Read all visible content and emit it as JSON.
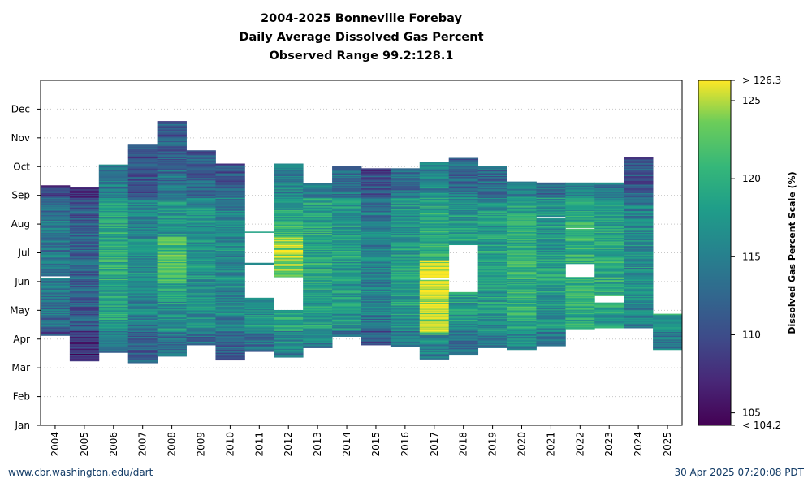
{
  "chart_data": {
    "type": "heatmap",
    "title": "2004-2025 Bonneville Forebay",
    "subtitle": "Daily Average Dissolved Gas Percent",
    "range_label": "Observed Range 99.2:128.1",
    "x_categories": [
      "2004",
      "2005",
      "2006",
      "2007",
      "2008",
      "2009",
      "2010",
      "2011",
      "2012",
      "2013",
      "2014",
      "2015",
      "2016",
      "2017",
      "2018",
      "2019",
      "2020",
      "2021",
      "2022",
      "2023",
      "2024",
      "2025"
    ],
    "y_ticks": [
      "Jan",
      "Feb",
      "Mar",
      "Apr",
      "May",
      "Jun",
      "Jul",
      "Aug",
      "Sep",
      "Oct",
      "Nov",
      "Dec"
    ],
    "grid": "horizontal dotted",
    "colorbar": {
      "label": "Dissolved Gas Percent Scale (%)",
      "min": 104.2,
      "max": 126.3,
      "ticks": [
        105,
        110,
        115,
        120,
        125
      ],
      "min_label": "< 104.2",
      "max_label": "> 126.3",
      "colormap": "viridis"
    },
    "seasons": [
      {
        "year": "2004",
        "start_day": 95,
        "end_day": 254,
        "typical": 112,
        "gaps": [
          [
            156,
            158
          ]
        ]
      },
      {
        "year": "2005",
        "start_day": 68,
        "end_day": 252,
        "typical": 110
      },
      {
        "year": "2006",
        "start_day": 77,
        "end_day": 276,
        "typical": 117
      },
      {
        "year": "2007",
        "start_day": 66,
        "end_day": 297,
        "typical": 114
      },
      {
        "year": "2008",
        "start_day": 73,
        "end_day": 322,
        "typical": 116
      },
      {
        "year": "2009",
        "start_day": 85,
        "end_day": 291,
        "typical": 115
      },
      {
        "year": "2010",
        "start_day": 69,
        "end_day": 277,
        "typical": 114
      },
      {
        "year": "2011",
        "start_day": 78,
        "end_day": 205,
        "typical": 116,
        "gaps": [
          [
            135,
            170
          ],
          [
            172,
            204
          ]
        ]
      },
      {
        "year": "2012",
        "start_day": 72,
        "end_day": 277,
        "typical": 118,
        "gaps": [
          [
            122,
            157
          ]
        ]
      },
      {
        "year": "2013",
        "start_day": 82,
        "end_day": 256,
        "typical": 117
      },
      {
        "year": "2014",
        "start_day": 82,
        "end_day": 274,
        "typical": 116,
        "gaps": [
          [
            82,
            94
          ]
        ]
      },
      {
        "year": "2015",
        "start_day": 85,
        "end_day": 272,
        "typical": 113
      },
      {
        "year": "2016",
        "start_day": 83,
        "end_day": 272,
        "typical": 116
      },
      {
        "year": "2017",
        "start_day": 70,
        "end_day": 279,
        "typical": 118,
        "gaps": [
          [
            154,
            156
          ]
        ]
      },
      {
        "year": "2018",
        "start_day": 75,
        "end_day": 283,
        "typical": 116,
        "gaps": [
          [
            141,
            191
          ]
        ]
      },
      {
        "year": "2019",
        "start_day": 82,
        "end_day": 274,
        "typical": 116
      },
      {
        "year": "2020",
        "start_day": 80,
        "end_day": 258,
        "typical": 118
      },
      {
        "year": "2021",
        "start_day": 84,
        "end_day": 257,
        "typical": 116,
        "gaps": [
          [
            220,
            221
          ]
        ]
      },
      {
        "year": "2022",
        "start_day": 102,
        "end_day": 257,
        "typical": 118,
        "gaps": [
          [
            157,
            171
          ],
          [
            208,
            209
          ]
        ]
      },
      {
        "year": "2023",
        "start_day": 103,
        "end_day": 257,
        "typical": 117,
        "gaps": [
          [
            130,
            137
          ]
        ]
      },
      {
        "year": "2024",
        "start_day": 103,
        "end_day": 284,
        "typical": 114
      },
      {
        "year": "2025",
        "start_day": 80,
        "end_day": 118,
        "typical": 117
      }
    ]
  },
  "footer": {
    "left": "www.cbr.washington.edu/dart",
    "right": "30 Apr 2025 07:20:08 PDT"
  }
}
